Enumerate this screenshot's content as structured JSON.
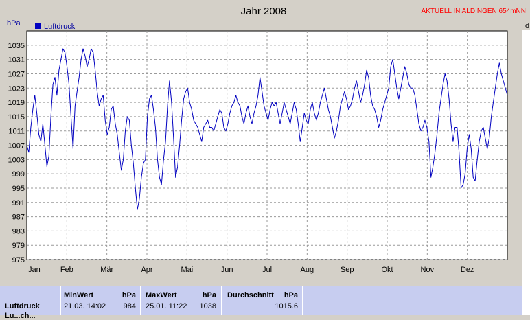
{
  "page": {
    "title": "Jahr 2008",
    "location_note": "AKTUELL IN ALDINGEN 654mNN",
    "corner_label": "d"
  },
  "chart_data": {
    "type": "line",
    "title": "Jahr 2008",
    "ylabel": "hPa",
    "xlabel": "",
    "ylim": [
      975,
      1039
    ],
    "yticks": [
      975,
      979,
      983,
      987,
      991,
      995,
      999,
      1003,
      1007,
      1011,
      1015,
      1019,
      1023,
      1027,
      1031,
      1035
    ],
    "x_categories": [
      "Jan",
      "Feb",
      "Mär",
      "Apr",
      "Mai",
      "Jun",
      "Jul",
      "Aug",
      "Sep",
      "Okt",
      "Nov",
      "Dez"
    ],
    "grid": true,
    "legend_position": "top-left",
    "series": [
      {
        "name": "Luftdruck",
        "color": "#0000c0",
        "points": [
          [
            1,
            1007
          ],
          [
            2,
            1005
          ],
          [
            3,
            1012
          ],
          [
            4,
            1017
          ],
          [
            5,
            1021
          ],
          [
            6,
            1016
          ],
          [
            7,
            1010
          ],
          [
            8,
            1008
          ],
          [
            9,
            1013
          ],
          [
            10,
            1007
          ],
          [
            11,
            1001
          ],
          [
            12,
            1004
          ],
          [
            13,
            1015
          ],
          [
            14,
            1024
          ],
          [
            15,
            1026
          ],
          [
            16,
            1021
          ],
          [
            17,
            1028
          ],
          [
            18,
            1031
          ],
          [
            19,
            1034
          ],
          [
            20,
            1033
          ],
          [
            21,
            1029
          ],
          [
            22,
            1024
          ],
          [
            23,
            1015
          ],
          [
            24,
            1006
          ],
          [
            25,
            1018
          ],
          [
            26,
            1022
          ],
          [
            27,
            1026
          ],
          [
            28,
            1031
          ],
          [
            29,
            1034
          ],
          [
            30,
            1032
          ],
          [
            31,
            1029
          ],
          [
            32,
            1031
          ],
          [
            33,
            1034
          ],
          [
            34,
            1033
          ],
          [
            35,
            1028
          ],
          [
            36,
            1022
          ],
          [
            37,
            1018
          ],
          [
            38,
            1020
          ],
          [
            39,
            1021
          ],
          [
            40,
            1014
          ],
          [
            41,
            1010
          ],
          [
            42,
            1012
          ],
          [
            43,
            1017
          ],
          [
            44,
            1018
          ],
          [
            45,
            1013
          ],
          [
            46,
            1010
          ],
          [
            47,
            1005
          ],
          [
            48,
            1000
          ],
          [
            49,
            1003
          ],
          [
            50,
            1011
          ],
          [
            51,
            1015
          ],
          [
            52,
            1014
          ],
          [
            53,
            1007
          ],
          [
            54,
            1002
          ],
          [
            55,
            995
          ],
          [
            56,
            989
          ],
          [
            57,
            992
          ],
          [
            58,
            998
          ],
          [
            59,
            1002
          ],
          [
            60,
            1003
          ],
          [
            61,
            1015
          ],
          [
            62,
            1020
          ],
          [
            63,
            1021
          ],
          [
            64,
            1017
          ],
          [
            65,
            1012
          ],
          [
            66,
            1003
          ],
          [
            67,
            998
          ],
          [
            68,
            996
          ],
          [
            69,
            1003
          ],
          [
            70,
            1008
          ],
          [
            71,
            1018
          ],
          [
            72,
            1025
          ],
          [
            73,
            1019
          ],
          [
            74,
            1009
          ],
          [
            75,
            998
          ],
          [
            76,
            1001
          ],
          [
            77,
            1007
          ],
          [
            78,
            1014
          ],
          [
            79,
            1020
          ],
          [
            80,
            1022
          ],
          [
            81,
            1023
          ],
          [
            82,
            1019
          ],
          [
            83,
            1017
          ],
          [
            84,
            1014
          ],
          [
            85,
            1013
          ],
          [
            86,
            1012
          ],
          [
            87,
            1010
          ],
          [
            88,
            1008
          ],
          [
            89,
            1012
          ],
          [
            90,
            1013
          ],
          [
            91,
            1014
          ],
          [
            92,
            1012
          ],
          [
            93,
            1012
          ],
          [
            94,
            1011
          ],
          [
            95,
            1013
          ],
          [
            96,
            1015
          ],
          [
            97,
            1017
          ],
          [
            98,
            1016
          ],
          [
            99,
            1012
          ],
          [
            100,
            1011
          ],
          [
            101,
            1013
          ],
          [
            102,
            1016
          ],
          [
            103,
            1018
          ],
          [
            104,
            1019
          ],
          [
            105,
            1021
          ],
          [
            106,
            1019
          ],
          [
            107,
            1018
          ],
          [
            108,
            1015
          ],
          [
            109,
            1013
          ],
          [
            110,
            1016
          ],
          [
            111,
            1018
          ],
          [
            112,
            1015
          ],
          [
            113,
            1013
          ],
          [
            114,
            1016
          ],
          [
            115,
            1018
          ],
          [
            116,
            1021
          ],
          [
            117,
            1026
          ],
          [
            118,
            1022
          ],
          [
            119,
            1018
          ],
          [
            120,
            1016
          ],
          [
            121,
            1014
          ],
          [
            122,
            1017
          ],
          [
            123,
            1019
          ],
          [
            124,
            1018
          ],
          [
            125,
            1019
          ],
          [
            126,
            1016
          ],
          [
            127,
            1013
          ],
          [
            128,
            1016
          ],
          [
            129,
            1019
          ],
          [
            130,
            1017
          ],
          [
            131,
            1015
          ],
          [
            132,
            1013
          ],
          [
            133,
            1016
          ],
          [
            134,
            1019
          ],
          [
            135,
            1017
          ],
          [
            136,
            1013
          ],
          [
            137,
            1008
          ],
          [
            138,
            1012
          ],
          [
            139,
            1016
          ],
          [
            140,
            1014
          ],
          [
            141,
            1013
          ],
          [
            142,
            1017
          ],
          [
            143,
            1019
          ],
          [
            144,
            1016
          ],
          [
            145,
            1014
          ],
          [
            146,
            1016
          ],
          [
            147,
            1019
          ],
          [
            148,
            1021
          ],
          [
            149,
            1023
          ],
          [
            150,
            1020
          ],
          [
            151,
            1017
          ],
          [
            152,
            1015
          ],
          [
            153,
            1012
          ],
          [
            154,
            1009
          ],
          [
            155,
            1011
          ],
          [
            156,
            1014
          ],
          [
            157,
            1018
          ],
          [
            158,
            1020
          ],
          [
            159,
            1022
          ],
          [
            160,
            1020
          ],
          [
            161,
            1017
          ],
          [
            162,
            1018
          ],
          [
            163,
            1020
          ],
          [
            164,
            1023
          ],
          [
            165,
            1025
          ],
          [
            166,
            1022
          ],
          [
            167,
            1019
          ],
          [
            168,
            1021
          ],
          [
            169,
            1024
          ],
          [
            170,
            1028
          ],
          [
            171,
            1026
          ],
          [
            172,
            1021
          ],
          [
            173,
            1018
          ],
          [
            174,
            1017
          ],
          [
            175,
            1015
          ],
          [
            176,
            1012
          ],
          [
            177,
            1014
          ],
          [
            178,
            1017
          ],
          [
            179,
            1019
          ],
          [
            180,
            1021
          ],
          [
            181,
            1023
          ],
          [
            182,
            1029
          ],
          [
            183,
            1031
          ],
          [
            184,
            1027
          ],
          [
            185,
            1023
          ],
          [
            186,
            1020
          ],
          [
            187,
            1023
          ],
          [
            188,
            1026
          ],
          [
            189,
            1029
          ],
          [
            190,
            1027
          ],
          [
            191,
            1024
          ],
          [
            192,
            1023
          ],
          [
            193,
            1023
          ],
          [
            194,
            1021
          ],
          [
            195,
            1017
          ],
          [
            196,
            1013
          ],
          [
            197,
            1011
          ],
          [
            198,
            1012
          ],
          [
            199,
            1014
          ],
          [
            200,
            1012
          ],
          [
            201,
            1008
          ],
          [
            202,
            998
          ],
          [
            203,
            1001
          ],
          [
            204,
            1005
          ],
          [
            205,
            1010
          ],
          [
            206,
            1016
          ],
          [
            207,
            1020
          ],
          [
            208,
            1024
          ],
          [
            209,
            1027
          ],
          [
            210,
            1025
          ],
          [
            211,
            1020
          ],
          [
            212,
            1013
          ],
          [
            213,
            1008
          ],
          [
            214,
            1012
          ],
          [
            215,
            1012
          ],
          [
            216,
            1005
          ],
          [
            217,
            995
          ],
          [
            218,
            996
          ],
          [
            219,
            999
          ],
          [
            220,
            1006
          ],
          [
            221,
            1010
          ],
          [
            222,
            1006
          ],
          [
            223,
            998
          ],
          [
            224,
            997
          ],
          [
            225,
            1003
          ],
          [
            226,
            1008
          ],
          [
            227,
            1011
          ],
          [
            228,
            1012
          ],
          [
            229,
            1009
          ],
          [
            230,
            1006
          ],
          [
            231,
            1009
          ],
          [
            232,
            1015
          ],
          [
            233,
            1019
          ],
          [
            234,
            1023
          ],
          [
            235,
            1027
          ],
          [
            236,
            1030
          ],
          [
            237,
            1027
          ],
          [
            238,
            1025
          ],
          [
            239,
            1023
          ],
          [
            240,
            1021
          ]
        ]
      }
    ]
  },
  "table": {
    "headers": {
      "min": "MinWert",
      "max": "MaxWert",
      "avg": "Durchschnitt",
      "unit": "hPa"
    },
    "rows": [
      {
        "label": "Luftdruck",
        "min_time": "21.03.  14:02",
        "min_value": "984",
        "max_time": "25.01.  11:22",
        "max_value": "1038",
        "avg_value": "1015.6"
      }
    ],
    "next_row_partial": "Lu...ch..."
  }
}
